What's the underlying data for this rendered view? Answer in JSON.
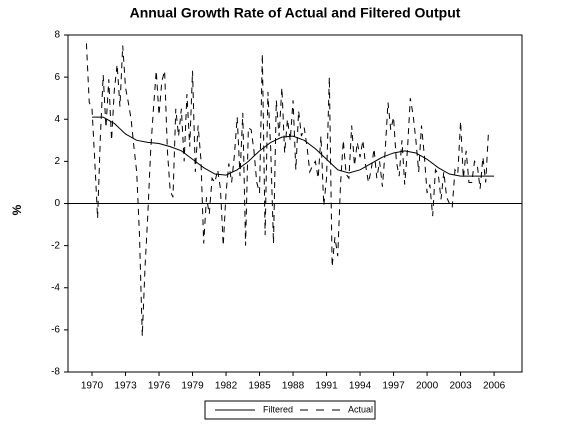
{
  "chart_data": {
    "type": "line",
    "title": "Annual Growth Rate of Actual and Filtered Output",
    "ylabel": "%",
    "xlim": [
      1967.85,
      2008.5
    ],
    "ylim": [
      -8,
      8
    ],
    "xticks": [
      1970,
      1973,
      1976,
      1979,
      1982,
      1985,
      1988,
      1991,
      1994,
      1997,
      2000,
      2003,
      2006
    ],
    "yticks": [
      -8,
      -6,
      -4,
      -2,
      0,
      2,
      4,
      6,
      8
    ],
    "legend": "bottom",
    "series": [
      {
        "name": "Filtered",
        "color": "#000000",
        "dash": "none",
        "x": [
          1970,
          1971,
          1972,
          1973,
          1974,
          1975,
          1976,
          1977,
          1978,
          1979,
          1980,
          1981,
          1982,
          1983,
          1984,
          1985,
          1986,
          1987,
          1988,
          1989,
          1990,
          1991,
          1992,
          1993,
          1994,
          1995,
          1996,
          1997,
          1998,
          1999,
          2000,
          2001,
          2002,
          2003,
          2004,
          2005,
          2006
        ],
        "values": [
          4.1,
          4.1,
          3.8,
          3.3,
          3.0,
          2.9,
          2.85,
          2.7,
          2.5,
          2.1,
          1.7,
          1.4,
          1.35,
          1.6,
          2.0,
          2.5,
          2.9,
          3.15,
          3.2,
          3.0,
          2.6,
          2.1,
          1.6,
          1.45,
          1.6,
          1.9,
          2.2,
          2.4,
          2.5,
          2.4,
          2.1,
          1.7,
          1.4,
          1.3,
          1.3,
          1.3,
          1.3
        ]
      },
      {
        "name": "Actual",
        "color": "#000000",
        "dash": "6 5",
        "x": [
          1969.5,
          1969.75,
          1970,
          1970.25,
          1970.5,
          1970.75,
          1971,
          1971.25,
          1971.5,
          1971.75,
          1972,
          1972.25,
          1972.5,
          1972.75,
          1973,
          1973.25,
          1973.5,
          1973.75,
          1974,
          1974.25,
          1974.5,
          1974.75,
          1975,
          1975.25,
          1975.5,
          1975.75,
          1976,
          1976.25,
          1976.5,
          1976.75,
          1977,
          1977.25,
          1977.5,
          1977.75,
          1978,
          1978.25,
          1978.5,
          1978.75,
          1979,
          1979.25,
          1979.5,
          1979.75,
          1980,
          1980.25,
          1980.5,
          1980.75,
          1981,
          1981.25,
          1981.5,
          1981.75,
          1982,
          1982.25,
          1982.5,
          1982.75,
          1983,
          1983.25,
          1983.5,
          1983.75,
          1984,
          1984.25,
          1984.5,
          1984.75,
          1985,
          1985.25,
          1985.5,
          1985.75,
          1986,
          1986.25,
          1986.5,
          1986.75,
          1987,
          1987.25,
          1987.5,
          1987.75,
          1988,
          1988.25,
          1988.5,
          1988.75,
          1989,
          1989.25,
          1989.5,
          1989.75,
          1990,
          1990.25,
          1990.5,
          1990.75,
          1991,
          1991.25,
          1991.5,
          1991.75,
          1992,
          1992.25,
          1992.5,
          1992.75,
          1993,
          1993.25,
          1993.5,
          1993.75,
          1994,
          1994.25,
          1994.5,
          1994.75,
          1995,
          1995.25,
          1995.5,
          1995.75,
          1996,
          1996.25,
          1996.5,
          1996.75,
          1997,
          1997.25,
          1997.5,
          1997.75,
          1998,
          1998.25,
          1998.5,
          1998.75,
          1999,
          1999.25,
          1999.5,
          1999.75,
          2000,
          2000.25,
          2000.5,
          2000.75,
          2001,
          2001.25,
          2001.5,
          2001.75,
          2002,
          2002.25,
          2002.5,
          2002.75,
          2003,
          2003.25,
          2003.5,
          2003.75,
          2004,
          2004.25,
          2004.5,
          2004.75,
          2005,
          2005.25,
          2005.5
        ],
        "values": [
          7.6,
          4.8,
          4.5,
          2.0,
          -0.7,
          3.2,
          6.1,
          3.6,
          5.9,
          3.0,
          5.4,
          6.6,
          4.6,
          7.5,
          5.5,
          4.8,
          4.0,
          2.7,
          1.5,
          -1.5,
          -6.3,
          -3.0,
          -0.5,
          2.5,
          4.5,
          6.3,
          4.2,
          5.8,
          6.3,
          2.5,
          0.6,
          0.3,
          4.5,
          3.2,
          4.5,
          2.0,
          5.2,
          2.7,
          6.3,
          1.5,
          3.7,
          2.1,
          -1.9,
          0.3,
          -0.5,
          1.2,
          1.0,
          1.6,
          0.7,
          -2.0,
          0.5,
          1.9,
          1.0,
          2.3,
          4.1,
          1.3,
          4.3,
          -2.0,
          3.6,
          3.5,
          2.5,
          1.0,
          0.5,
          7.1,
          -1.5,
          5.3,
          2.6,
          -1.9,
          4.9,
          3.2,
          5.5,
          2.4,
          4.0,
          3.0,
          4.9,
          1.6,
          4.4,
          3.2,
          3.6,
          2.7,
          1.5,
          1.8,
          2.0,
          1.2,
          3.2,
          -0.1,
          1.2,
          6.0,
          -3.0,
          -1.6,
          -2.5,
          0.9,
          3.0,
          1.4,
          1.2,
          3.7,
          1.8,
          2.9,
          2.2,
          3.0,
          1.8,
          1.0,
          1.6,
          2.6,
          1.2,
          2.0,
          0.8,
          2.5,
          4.8,
          3.5,
          4.1,
          2.0,
          1.3,
          3.0,
          0.9,
          2.6,
          5.0,
          4.2,
          3.0,
          1.5,
          3.7,
          2.3,
          0.5,
          0.9,
          -0.6,
          1.6,
          1.4,
          0.2,
          1.5,
          0.3,
          0.0,
          -0.2,
          1.6,
          1.4,
          3.9,
          1.2,
          2.5,
          1.0,
          1.0,
          2.0,
          1.8,
          0.7,
          2.2,
          1.0,
          3.4
        ]
      }
    ]
  }
}
